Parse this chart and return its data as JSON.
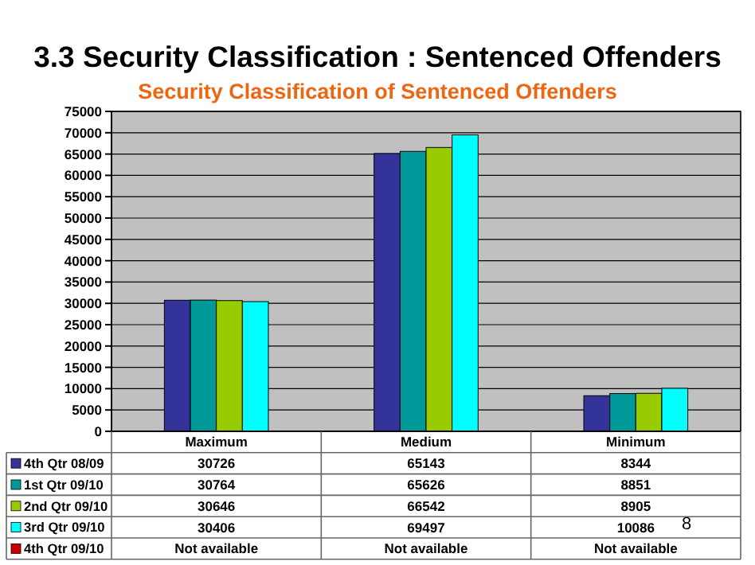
{
  "chart_data": {
    "type": "bar",
    "title": "3.3 Security Classification : Sentenced Offenders",
    "subtitle": "Security Classification of Sentenced Offenders",
    "categories": [
      "Maximum",
      "Medium",
      "Minimum"
    ],
    "series": [
      {
        "name": "4th Qtr 08/09",
        "color": "#333399",
        "values": [
          30726,
          65143,
          8344
        ]
      },
      {
        "name": "1st Qtr 09/10",
        "color": "#009999",
        "values": [
          30764,
          65626,
          8851
        ]
      },
      {
        "name": "2nd Qtr 09/10",
        "color": "#99cc00",
        "values": [
          30646,
          66542,
          8905
        ]
      },
      {
        "name": "3rd Qtr 09/10",
        "color": "#00ffff",
        "values": [
          30406,
          69497,
          10086
        ]
      },
      {
        "name": "4th Qtr 09/10",
        "color": "#cc0000",
        "values": [
          null,
          null,
          null
        ],
        "value_labels": [
          "Not available",
          "Not available",
          "Not available"
        ]
      }
    ],
    "ylim": [
      0,
      75000
    ],
    "yticks": [
      0,
      5000,
      10000,
      15000,
      20000,
      25000,
      30000,
      35000,
      40000,
      45000,
      50000,
      55000,
      60000,
      65000,
      70000,
      75000
    ],
    "grid": "y",
    "data_labels": true,
    "legend": "bottom left",
    "annotations": [
      {
        "text": "8"
      }
    ]
  }
}
